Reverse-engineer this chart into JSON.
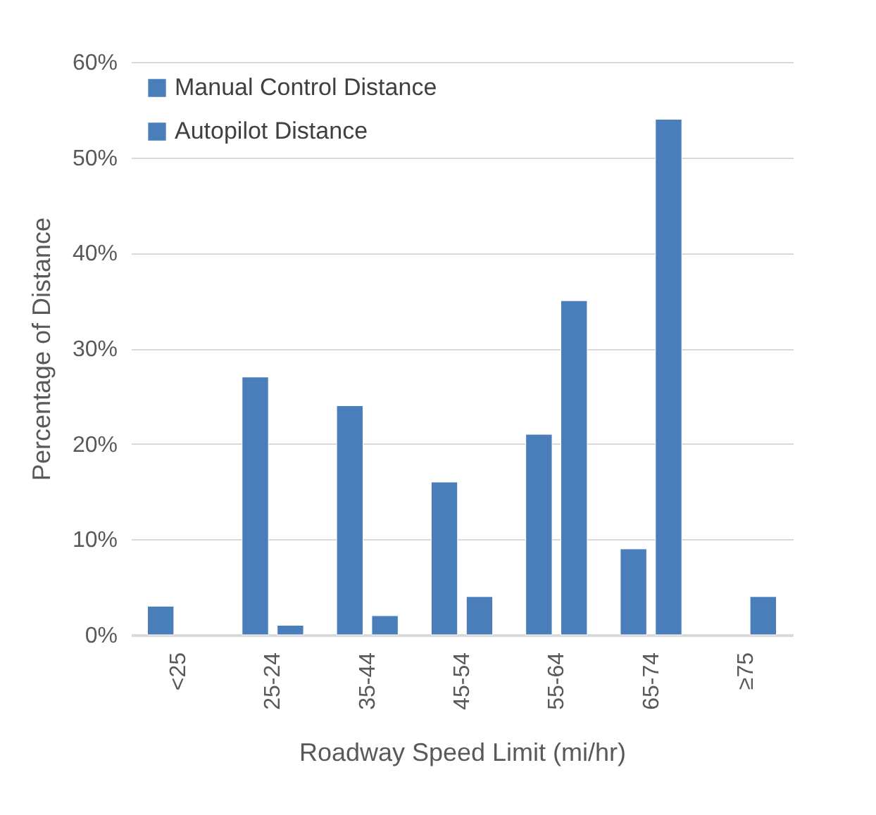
{
  "chart_data": {
    "type": "bar",
    "categories": [
      "<25",
      "25-24",
      "35-44",
      "45-54",
      "55-64",
      "65-74",
      "≥75"
    ],
    "series": [
      {
        "name": "Manual Control Distance",
        "color": "#4a7ebb",
        "values": [
          3,
          27,
          24,
          16,
          21,
          9,
          null
        ]
      },
      {
        "name": "Autopilot Distance",
        "color": "#4a7ebb",
        "values": [
          null,
          1,
          2,
          4,
          35,
          54,
          4
        ]
      }
    ],
    "xlabel": "Roadway Speed Limit (mi/hr)",
    "ylabel": "Percentage of Distance",
    "ylim": [
      0,
      60
    ],
    "yticks": [
      {
        "value": 0,
        "label": "0%"
      },
      {
        "value": 10,
        "label": "10%"
      },
      {
        "value": 20,
        "label": "20%"
      },
      {
        "value": 30,
        "label": "30%"
      },
      {
        "value": 40,
        "label": "40%"
      },
      {
        "value": 50,
        "label": "50%"
      },
      {
        "value": 60,
        "label": "60%"
      }
    ],
    "grid": "y",
    "legend": "top left"
  }
}
